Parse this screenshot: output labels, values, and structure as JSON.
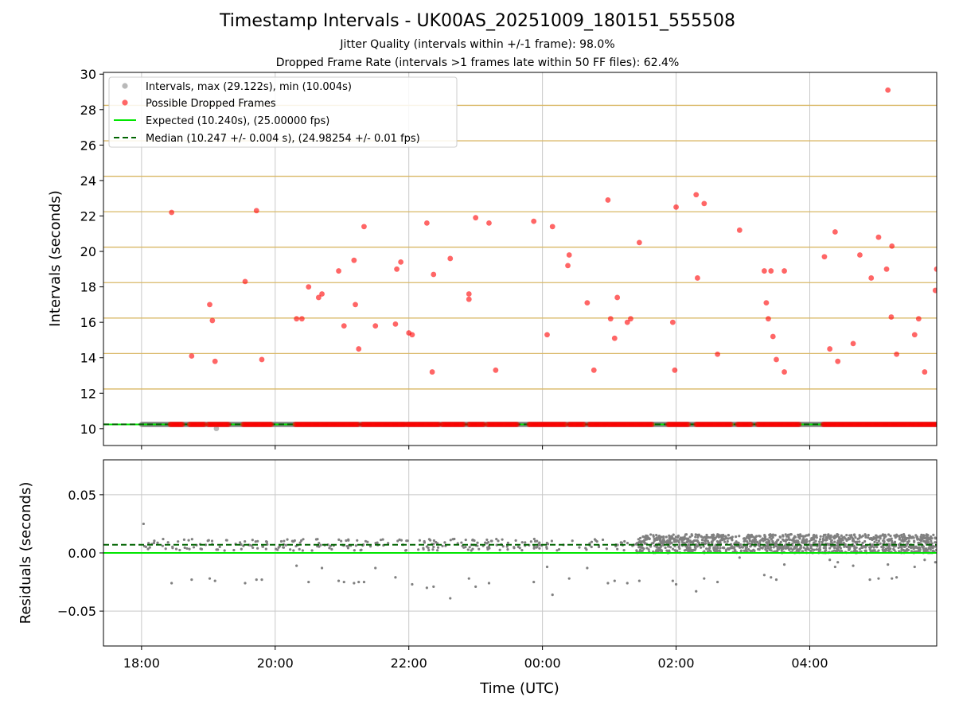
{
  "chart_data": {
    "title": "Timestamp Intervals - UK00AS_20251009_180151_555508",
    "subtitle_1": "Jitter Quality (intervals within +/-1 frame): 98.0%",
    "subtitle_2": "Dropped Frame Rate (intervals >1 frames late within 50 FF files): 62.4%",
    "xlabel": "Time (UTC)",
    "x_unit": "hours since 18:00 UTC",
    "xlim": [
      -0.57,
      11.9
    ],
    "x_ticks": [
      {
        "value": 0,
        "label": "18:00"
      },
      {
        "value": 2,
        "label": "20:00"
      },
      {
        "value": 4,
        "label": "22:00"
      },
      {
        "value": 6,
        "label": "00:00"
      },
      {
        "value": 8,
        "label": "02:00"
      },
      {
        "value": 10,
        "label": "04:00"
      }
    ],
    "top_panel": {
      "type": "scatter",
      "ylabel": "Intervals (seconds)",
      "ylim": [
        9.05,
        30.1
      ],
      "y_ticks": [
        "10",
        "12",
        "14",
        "16",
        "18",
        "20",
        "22",
        "24",
        "26",
        "28",
        "30"
      ],
      "y_tick_values": [
        10,
        12,
        14,
        16,
        18,
        20,
        22,
        24,
        26,
        28,
        30
      ],
      "frame_bands": [
        10.24,
        12.24,
        14.24,
        16.24,
        18.24,
        20.24,
        22.24,
        24.24,
        26.24,
        28.24,
        30.24
      ],
      "legend": {
        "placement": "upper-left",
        "entries": [
          "Intervals, max (29.122s), min (10.004s)",
          "Possible Dropped Frames",
          "Expected (10.240s), (25.00000 fps)",
          "Median (10.247 +/- 0.004 s), (24.98254 +/- 0.01 fps)"
        ]
      },
      "expected_interval": 10.24,
      "median_interval": 10.247,
      "interval_min": {
        "x": 1.12,
        "y": 10.004
      },
      "interval_baseline": 10.24,
      "interval_segments": [
        [
          0,
          11.9
        ]
      ],
      "dropped_baseline": 10.24,
      "dropped_segments": [
        [
          0.43,
          0.63
        ],
        [
          0.72,
          0.95
        ],
        [
          1.0,
          1.32
        ],
        [
          1.52,
          1.95
        ],
        [
          2.3,
          3.25
        ],
        [
          3.3,
          3.95
        ],
        [
          3.97,
          4.45
        ],
        [
          4.5,
          4.82
        ],
        [
          4.9,
          5.12
        ],
        [
          5.18,
          5.62
        ],
        [
          5.8,
          6.35
        ],
        [
          6.4,
          6.62
        ],
        [
          6.7,
          7.65
        ],
        [
          7.88,
          8.18
        ],
        [
          8.3,
          8.82
        ],
        [
          8.92,
          9.12
        ],
        [
          9.22,
          9.85
        ],
        [
          10.2,
          11.9
        ]
      ],
      "dropped_outliers": [
        {
          "x": 0.45,
          "y": 22.2
        },
        {
          "x": 0.75,
          "y": 14.1
        },
        {
          "x": 1.02,
          "y": 17.0
        },
        {
          "x": 1.06,
          "y": 16.1
        },
        {
          "x": 1.1,
          "y": 13.8
        },
        {
          "x": 1.55,
          "y": 18.3
        },
        {
          "x": 1.72,
          "y": 22.3
        },
        {
          "x": 1.8,
          "y": 13.9
        },
        {
          "x": 2.32,
          "y": 16.2
        },
        {
          "x": 2.4,
          "y": 16.2
        },
        {
          "x": 2.5,
          "y": 18.0
        },
        {
          "x": 2.65,
          "y": 17.4
        },
        {
          "x": 2.7,
          "y": 17.6
        },
        {
          "x": 2.95,
          "y": 18.9
        },
        {
          "x": 3.03,
          "y": 15.8
        },
        {
          "x": 3.18,
          "y": 19.5
        },
        {
          "x": 3.2,
          "y": 17.0
        },
        {
          "x": 3.25,
          "y": 14.5
        },
        {
          "x": 3.33,
          "y": 21.4
        },
        {
          "x": 3.5,
          "y": 15.8
        },
        {
          "x": 3.8,
          "y": 15.9
        },
        {
          "x": 3.82,
          "y": 19.0
        },
        {
          "x": 3.88,
          "y": 19.4
        },
        {
          "x": 4.0,
          "y": 15.4
        },
        {
          "x": 4.05,
          "y": 15.3
        },
        {
          "x": 4.27,
          "y": 21.6
        },
        {
          "x": 4.35,
          "y": 13.2
        },
        {
          "x": 4.37,
          "y": 18.7
        },
        {
          "x": 4.62,
          "y": 19.6
        },
        {
          "x": 4.9,
          "y": 17.6
        },
        {
          "x": 4.9,
          "y": 17.3
        },
        {
          "x": 5.0,
          "y": 21.9
        },
        {
          "x": 5.2,
          "y": 21.6
        },
        {
          "x": 5.3,
          "y": 13.3
        },
        {
          "x": 5.87,
          "y": 21.7
        },
        {
          "x": 6.07,
          "y": 15.3
        },
        {
          "x": 6.15,
          "y": 21.4
        },
        {
          "x": 6.38,
          "y": 19.2
        },
        {
          "x": 6.4,
          "y": 19.8
        },
        {
          "x": 6.67,
          "y": 17.1
        },
        {
          "x": 6.77,
          "y": 13.3
        },
        {
          "x": 6.98,
          "y": 22.9
        },
        {
          "x": 7.02,
          "y": 16.2
        },
        {
          "x": 7.08,
          "y": 15.1
        },
        {
          "x": 7.12,
          "y": 17.4
        },
        {
          "x": 7.27,
          "y": 16.0
        },
        {
          "x": 7.32,
          "y": 16.2
        },
        {
          "x": 7.45,
          "y": 20.5
        },
        {
          "x": 7.95,
          "y": 16.0
        },
        {
          "x": 7.98,
          "y": 13.3
        },
        {
          "x": 8.0,
          "y": 22.5
        },
        {
          "x": 8.3,
          "y": 23.2
        },
        {
          "x": 8.32,
          "y": 18.5
        },
        {
          "x": 8.42,
          "y": 22.7
        },
        {
          "x": 8.62,
          "y": 14.2
        },
        {
          "x": 8.95,
          "y": 21.2
        },
        {
          "x": 9.32,
          "y": 18.9
        },
        {
          "x": 9.35,
          "y": 17.1
        },
        {
          "x": 9.38,
          "y": 16.2
        },
        {
          "x": 9.42,
          "y": 18.9
        },
        {
          "x": 9.45,
          "y": 15.2
        },
        {
          "x": 9.5,
          "y": 13.9
        },
        {
          "x": 9.62,
          "y": 18.9
        },
        {
          "x": 9.62,
          "y": 13.2
        },
        {
          "x": 10.22,
          "y": 19.7
        },
        {
          "x": 10.3,
          "y": 14.5
        },
        {
          "x": 10.38,
          "y": 21.1
        },
        {
          "x": 10.42,
          "y": 13.8
        },
        {
          "x": 10.65,
          "y": 14.8
        },
        {
          "x": 10.75,
          "y": 19.8
        },
        {
          "x": 10.92,
          "y": 18.5
        },
        {
          "x": 11.03,
          "y": 20.8
        },
        {
          "x": 11.15,
          "y": 19.0
        },
        {
          "x": 11.17,
          "y": 29.1
        },
        {
          "x": 11.23,
          "y": 20.3
        },
        {
          "x": 11.22,
          "y": 16.3
        },
        {
          "x": 11.3,
          "y": 14.2
        },
        {
          "x": 11.57,
          "y": 15.3
        },
        {
          "x": 11.63,
          "y": 16.2
        },
        {
          "x": 11.72,
          "y": 13.2
        },
        {
          "x": 11.88,
          "y": 17.8
        },
        {
          "x": 11.9,
          "y": 19.0
        }
      ]
    },
    "bottom_panel": {
      "type": "scatter",
      "ylabel": "Residuals (seconds)",
      "ylim": [
        -0.08,
        0.08
      ],
      "y_ticks": [
        "−0.05",
        "0.00",
        "0.05"
      ],
      "y_tick_values": [
        -0.05,
        0,
        0.05
      ],
      "expected_residual": 0.0,
      "median_residual": 0.007,
      "sparse_band": {
        "x_range": [
          0,
          7.4
        ],
        "center": 0.007,
        "spread": 0.005,
        "point_count": 260
      },
      "dense_band": {
        "x_range": [
          7.4,
          11.9
        ],
        "center": 0.008,
        "spread": 0.008,
        "point_count": 1200
      },
      "outliers": [
        {
          "x": 0.03,
          "y": 0.025
        },
        {
          "x": 0.45,
          "y": -0.026
        },
        {
          "x": 0.75,
          "y": -0.023
        },
        {
          "x": 1.02,
          "y": -0.022
        },
        {
          "x": 1.1,
          "y": -0.024
        },
        {
          "x": 1.55,
          "y": -0.026
        },
        {
          "x": 1.72,
          "y": -0.023
        },
        {
          "x": 1.8,
          "y": -0.023
        },
        {
          "x": 2.32,
          "y": -0.011
        },
        {
          "x": 2.5,
          "y": -0.025
        },
        {
          "x": 2.7,
          "y": -0.013
        },
        {
          "x": 2.95,
          "y": -0.024
        },
        {
          "x": 3.03,
          "y": -0.025
        },
        {
          "x": 3.18,
          "y": -0.026
        },
        {
          "x": 3.25,
          "y": -0.025
        },
        {
          "x": 3.33,
          "y": -0.025
        },
        {
          "x": 3.5,
          "y": -0.013
        },
        {
          "x": 3.8,
          "y": -0.021
        },
        {
          "x": 4.05,
          "y": -0.027
        },
        {
          "x": 4.27,
          "y": -0.03
        },
        {
          "x": 4.37,
          "y": -0.029
        },
        {
          "x": 4.62,
          "y": -0.039
        },
        {
          "x": 4.9,
          "y": -0.022
        },
        {
          "x": 5.0,
          "y": -0.029
        },
        {
          "x": 5.2,
          "y": -0.026
        },
        {
          "x": 5.87,
          "y": -0.025
        },
        {
          "x": 6.07,
          "y": -0.012
        },
        {
          "x": 6.15,
          "y": -0.036
        },
        {
          "x": 6.4,
          "y": -0.022
        },
        {
          "x": 6.67,
          "y": -0.013
        },
        {
          "x": 6.98,
          "y": -0.026
        },
        {
          "x": 7.08,
          "y": -0.024
        },
        {
          "x": 7.27,
          "y": -0.026
        },
        {
          "x": 7.45,
          "y": -0.024
        },
        {
          "x": 7.95,
          "y": -0.024
        },
        {
          "x": 8.0,
          "y": -0.027
        },
        {
          "x": 8.3,
          "y": -0.033
        },
        {
          "x": 8.42,
          "y": -0.022
        },
        {
          "x": 8.62,
          "y": -0.025
        },
        {
          "x": 8.95,
          "y": -0.004
        },
        {
          "x": 9.32,
          "y": -0.019
        },
        {
          "x": 9.42,
          "y": -0.021
        },
        {
          "x": 9.5,
          "y": -0.023
        },
        {
          "x": 9.62,
          "y": -0.01
        },
        {
          "x": 10.3,
          "y": -0.006
        },
        {
          "x": 10.38,
          "y": -0.012
        },
        {
          "x": 10.42,
          "y": -0.008
        },
        {
          "x": 10.65,
          "y": -0.011
        },
        {
          "x": 10.9,
          "y": -0.023
        },
        {
          "x": 11.03,
          "y": -0.022
        },
        {
          "x": 11.17,
          "y": -0.01
        },
        {
          "x": 11.23,
          "y": -0.022
        },
        {
          "x": 11.3,
          "y": -0.021
        },
        {
          "x": 11.57,
          "y": -0.012
        },
        {
          "x": 11.72,
          "y": -0.006
        },
        {
          "x": 11.88,
          "y": -0.008
        }
      ]
    },
    "colors": {
      "interval_points": "#808080",
      "dropped_points": "#ff0000",
      "expected_line": "#00e600",
      "median_line": "#006400",
      "frame_bands": "#d9b866",
      "grid": "#c8c8c8"
    }
  }
}
